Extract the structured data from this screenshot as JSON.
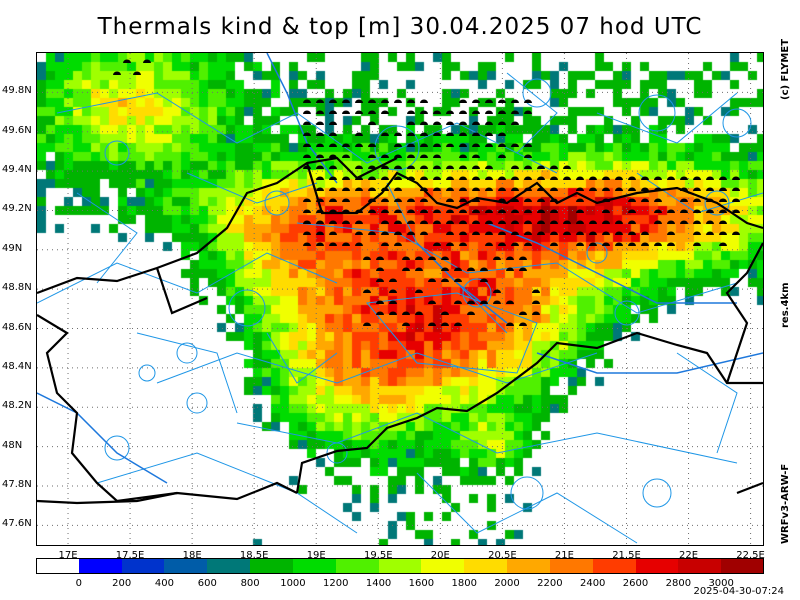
{
  "title": "Thermals kind & top [m]  30.04.2025 07 hod UTC",
  "side_labels": {
    "credit": "(c) FLYMET",
    "resolution": "res.4km",
    "model": "WRFv3-ARW-F"
  },
  "timestamp": "2025-04-30-07:24",
  "map": {
    "lon_range": [
      16.75,
      22.6
    ],
    "lat_range": [
      47.5,
      50.0
    ],
    "lat_ticks": [
      "49.8N",
      "49.6N",
      "49.4N",
      "49.2N",
      "49N",
      "48.8N",
      "48.6N",
      "48.4N",
      "48.2N",
      "48N",
      "47.8N",
      "47.6N"
    ],
    "lon_ticks": [
      "17E",
      "17.5E",
      "18E",
      "18.5E",
      "19E",
      "19.5E",
      "20E",
      "20.5E",
      "21E",
      "21.5E",
      "22E",
      "22.5E"
    ],
    "colors": {
      "border": "#000000",
      "airspace": "#1e96e6",
      "river": "#1e78dc",
      "grid": "#6e6e6e"
    }
  },
  "legend": {
    "labels": [
      "0",
      "200",
      "400",
      "600",
      "800",
      "1000",
      "1200",
      "1400",
      "1600",
      "1800",
      "2000",
      "2200",
      "2400",
      "2600",
      "2800",
      "3000"
    ],
    "colors": [
      "#ffffff",
      "#0000ff",
      "#0033cc",
      "#005ca8",
      "#007878",
      "#00b400",
      "#00dc00",
      "#50f000",
      "#a0ff00",
      "#f0ff00",
      "#ffdc00",
      "#ffa800",
      "#ff7800",
      "#ff3c00",
      "#e60000",
      "#c80000",
      "#a00000"
    ]
  }
}
